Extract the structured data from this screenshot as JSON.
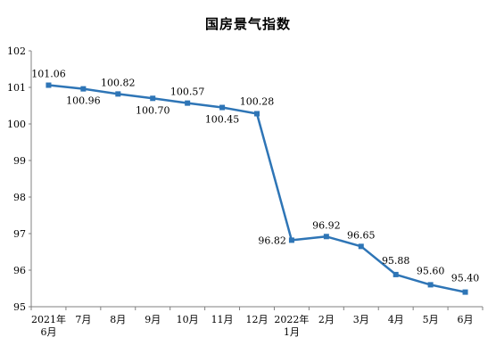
{
  "chart_data": {
    "type": "line",
    "title": "国房景气指数",
    "xlabel": "",
    "ylabel": "",
    "ylim": [
      95,
      102
    ],
    "yticks": [
      "95",
      "96",
      "97",
      "98",
      "99",
      "100",
      "101",
      "102"
    ],
    "categories": [
      [
        "2021年",
        "6月"
      ],
      [
        "7月"
      ],
      [
        "8月"
      ],
      [
        "9月"
      ],
      [
        "10月"
      ],
      [
        "11月"
      ],
      [
        "12月"
      ],
      [
        "2022年",
        "1月"
      ],
      [
        "2月"
      ],
      [
        "3月"
      ],
      [
        "4月"
      ],
      [
        "5月"
      ],
      [
        "6月"
      ]
    ],
    "series": [
      {
        "values": [
          101.06,
          100.96,
          100.82,
          100.7,
          100.57,
          100.45,
          100.28,
          96.82,
          96.92,
          96.65,
          95.88,
          95.6,
          95.4
        ],
        "labels": [
          "101.06",
          "100.96",
          "100.82",
          "100.70",
          "100.57",
          "100.45",
          "100.28",
          "96.82",
          "96.92",
          "96.65",
          "95.88",
          "95.60",
          "95.40"
        ]
      }
    ],
    "line_color": "#2e75b6",
    "axis_color": "#808080",
    "grid": false,
    "legend": "none"
  }
}
